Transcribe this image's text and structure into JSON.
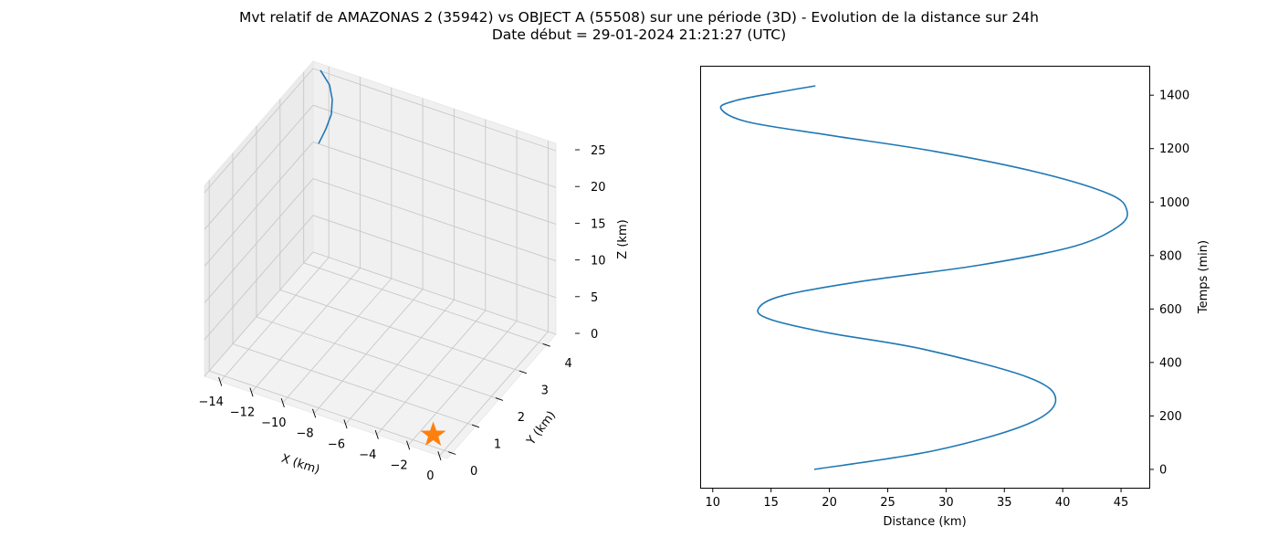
{
  "title": {
    "line1": "Mvt relatif de AMAZONAS 2 (35942) vs OBJECT A (55508) sur une période (3D) - Evolution de la distance sur 24h",
    "line2": "Date début = 29-01-2024 21:21:27 (UTC)"
  },
  "colors": {
    "series": "#1f77b4",
    "marker": "#ff7f0e"
  },
  "chart_data": [
    {
      "type": "line3d",
      "xlabel": "X (km)",
      "ylabel": "Y (km)",
      "zlabel": "Z (km)",
      "xlim": [
        -15,
        0.5
      ],
      "ylim": [
        -0.2,
        4.4
      ],
      "zlim": [
        0,
        26
      ],
      "x_ticks": [
        -14,
        -12,
        -10,
        -8,
        -6,
        -4,
        -2,
        0
      ],
      "y_ticks": [
        0,
        1,
        2,
        3,
        4
      ],
      "z_ticks": [
        0,
        5,
        10,
        15,
        20,
        25
      ],
      "grid": true,
      "series": [
        {
          "points": [
            [
              -14.5,
              4.3,
              15.5
            ],
            [
              -14.5,
              4.3,
              17.5
            ],
            [
              -14.5,
              4.3,
              19.5
            ],
            [
              -14.5,
              4.3,
              21.5
            ],
            [
              -14.5,
              4.3,
              23.5
            ],
            [
              -14.5,
              4.3,
              25.5
            ]
          ]
        }
      ],
      "marker": {
        "symbol": "star",
        "x": 0,
        "y": 0,
        "z": 0
      }
    },
    {
      "type": "line",
      "xlabel": "Distance (km)",
      "ylabel": "Temps (min)",
      "xlim": [
        9,
        47.5
      ],
      "ylim": [
        -72,
        1510
      ],
      "x_ticks": [
        10,
        15,
        20,
        25,
        30,
        35,
        40,
        45
      ],
      "y_ticks": [
        0,
        200,
        400,
        600,
        800,
        1000,
        1200,
        1400
      ],
      "yaxis_position": "right",
      "grid": false,
      "series": [
        {
          "points": [
            [
              18.7,
              0
            ],
            [
              29,
              70
            ],
            [
              37,
              170
            ],
            [
              39.4,
              260
            ],
            [
              37,
              345
            ],
            [
              28,
              450
            ],
            [
              20,
              510
            ],
            [
              15,
              560
            ],
            [
              13.9,
              600
            ],
            [
              16,
              650
            ],
            [
              23,
              705
            ],
            [
              33,
              765
            ],
            [
              41,
              835
            ],
            [
              44.8,
              910
            ],
            [
              45.5,
              970
            ],
            [
              44,
              1030
            ],
            [
              38,
              1110
            ],
            [
              29,
              1190
            ],
            [
              20,
              1250
            ],
            [
              13,
              1300
            ],
            [
              10.7,
              1350
            ],
            [
              12,
              1380
            ],
            [
              15.5,
              1410
            ],
            [
              18.8,
              1435
            ]
          ]
        }
      ]
    }
  ]
}
